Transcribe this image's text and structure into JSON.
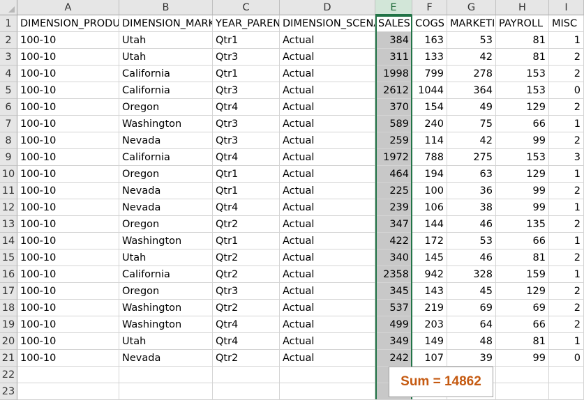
{
  "columns": [
    "A",
    "B",
    "C",
    "D",
    "E",
    "F",
    "G",
    "H",
    "I"
  ],
  "row_numbers": [
    "1",
    "2",
    "3",
    "4",
    "5",
    "6",
    "7",
    "8",
    "9",
    "10",
    "11",
    "12",
    "13",
    "14",
    "15",
    "16",
    "17",
    "18",
    "19",
    "20",
    "21",
    "22",
    "23"
  ],
  "headers": [
    "DIMENSION_PRODUCT",
    "DIMENSION_MARKET",
    "YEAR_PARENTS",
    "DIMENSION_SCENARIO",
    "SALES",
    "COGS",
    "MARKETING",
    "PAYROLL",
    "MISC"
  ],
  "rows": [
    [
      "100-10",
      "Utah",
      "Qtr1",
      "Actual",
      "384",
      "163",
      "53",
      "81",
      "1"
    ],
    [
      "100-10",
      "Utah",
      "Qtr3",
      "Actual",
      "311",
      "133",
      "42",
      "81",
      "2"
    ],
    [
      "100-10",
      "California",
      "Qtr1",
      "Actual",
      "1998",
      "799",
      "278",
      "153",
      "2"
    ],
    [
      "100-10",
      "California",
      "Qtr3",
      "Actual",
      "2612",
      "1044",
      "364",
      "153",
      "0"
    ],
    [
      "100-10",
      "Oregon",
      "Qtr4",
      "Actual",
      "370",
      "154",
      "49",
      "129",
      "2"
    ],
    [
      "100-10",
      "Washington",
      "Qtr3",
      "Actual",
      "589",
      "240",
      "75",
      "66",
      "1"
    ],
    [
      "100-10",
      "Nevada",
      "Qtr3",
      "Actual",
      "259",
      "114",
      "42",
      "99",
      "2"
    ],
    [
      "100-10",
      "California",
      "Qtr4",
      "Actual",
      "1972",
      "788",
      "275",
      "153",
      "3"
    ],
    [
      "100-10",
      "Oregon",
      "Qtr1",
      "Actual",
      "464",
      "194",
      "63",
      "129",
      "1"
    ],
    [
      "100-10",
      "Nevada",
      "Qtr1",
      "Actual",
      "225",
      "100",
      "36",
      "99",
      "2"
    ],
    [
      "100-10",
      "Nevada",
      "Qtr4",
      "Actual",
      "239",
      "106",
      "38",
      "99",
      "1"
    ],
    [
      "100-10",
      "Oregon",
      "Qtr2",
      "Actual",
      "347",
      "144",
      "46",
      "135",
      "2"
    ],
    [
      "100-10",
      "Washington",
      "Qtr1",
      "Actual",
      "422",
      "172",
      "53",
      "66",
      "1"
    ],
    [
      "100-10",
      "Utah",
      "Qtr2",
      "Actual",
      "340",
      "145",
      "46",
      "81",
      "2"
    ],
    [
      "100-10",
      "California",
      "Qtr2",
      "Actual",
      "2358",
      "942",
      "328",
      "159",
      "1"
    ],
    [
      "100-10",
      "Oregon",
      "Qtr3",
      "Actual",
      "345",
      "143",
      "45",
      "129",
      "2"
    ],
    [
      "100-10",
      "Washington",
      "Qtr2",
      "Actual",
      "537",
      "219",
      "69",
      "69",
      "2"
    ],
    [
      "100-10",
      "Washington",
      "Qtr4",
      "Actual",
      "499",
      "203",
      "64",
      "66",
      "2"
    ],
    [
      "100-10",
      "Utah",
      "Qtr4",
      "Actual",
      "349",
      "149",
      "48",
      "81",
      "1"
    ],
    [
      "100-10",
      "Nevada",
      "Qtr2",
      "Actual",
      "242",
      "107",
      "39",
      "99",
      "0"
    ]
  ],
  "selected_column": "E",
  "sum_label": "Sum = 14862"
}
